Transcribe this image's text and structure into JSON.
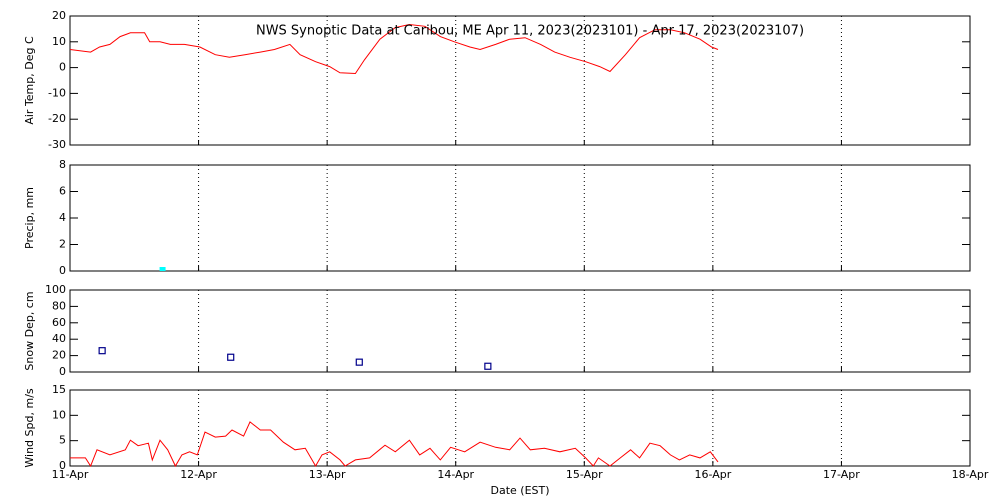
{
  "chart_data": [
    {
      "type": "line",
      "title": "NWS Synoptic Data at Caribou, ME   Apr 11, 2023(2023101) - Apr 17, 2023(2023107)",
      "y_label": "Air Temp, Deg C",
      "color": "#ff0000",
      "grid": true,
      "x": [
        0,
        0.16,
        0.23,
        0.31,
        0.39,
        0.47,
        0.58,
        0.62,
        0.7,
        0.78,
        0.89,
        1.01,
        1.13,
        1.24,
        1.36,
        1.48,
        1.59,
        1.71,
        1.79,
        1.91,
        2.02,
        2.1,
        2.22,
        2.29,
        2.41,
        2.53,
        2.64,
        2.76,
        2.88,
        2.99,
        3.11,
        3.19,
        3.31,
        3.42,
        3.54,
        3.66,
        3.77,
        3.89,
        4.01,
        4.12,
        4.2,
        4.32,
        4.43,
        4.55,
        4.67,
        4.78,
        4.9,
        4.99,
        5.04
      ],
      "values": [
        7,
        6,
        8,
        9,
        12,
        13.5,
        13.5,
        10,
        10,
        9,
        9,
        8,
        5,
        4,
        5,
        6,
        7,
        9,
        5,
        2.3,
        0.4,
        -2,
        -2.3,
        3,
        11,
        15.5,
        16.7,
        16,
        12,
        10,
        8,
        7,
        9,
        11,
        11.6,
        9,
        6,
        4,
        2.3,
        0.4,
        -1.5,
        5,
        11.6,
        14.7,
        14.7,
        13.5,
        11,
        8,
        7
      ],
      "xlim": [
        0,
        7
      ],
      "xticks": [
        0,
        1,
        2,
        3,
        4,
        5,
        6,
        7
      ],
      "ylim": [
        -30,
        20
      ],
      "yticks": [
        -30,
        -20,
        -10,
        0,
        10,
        20
      ]
    },
    {
      "type": "bar",
      "y_label": "Precip, mm",
      "color": "#00ffff",
      "grid": true,
      "x": [
        0.72
      ],
      "values": [
        0.2
      ],
      "xlim": [
        0,
        7
      ],
      "xticks": [
        0,
        1,
        2,
        3,
        4,
        5,
        6,
        7
      ],
      "ylim": [
        0,
        8
      ],
      "yticks": [
        0,
        2,
        4,
        6,
        8
      ]
    },
    {
      "type": "scatter",
      "y_label": "Snow Dep, cm",
      "color": "#00008b",
      "grid": true,
      "x": [
        0.25,
        1.25,
        2.25,
        3.25
      ],
      "values": [
        26,
        18,
        12,
        7
      ],
      "xlim": [
        0,
        7
      ],
      "xticks": [
        0,
        1,
        2,
        3,
        4,
        5,
        6,
        7
      ],
      "ylim": [
        0,
        100
      ],
      "yticks": [
        0,
        20,
        40,
        60,
        80,
        100
      ]
    },
    {
      "type": "line",
      "y_label": "Wind Spd, m/s",
      "x_label": "Date (EST)",
      "color": "#ff0000",
      "grid": true,
      "x": [
        0,
        0.12,
        0.16,
        0.21,
        0.31,
        0.43,
        0.47,
        0.53,
        0.61,
        0.64,
        0.7,
        0.76,
        0.82,
        0.87,
        0.93,
        0.99,
        1.05,
        1.13,
        1.21,
        1.26,
        1.35,
        1.4,
        1.48,
        1.56,
        1.66,
        1.75,
        1.83,
        1.91,
        1.96,
        2.02,
        2.1,
        2.14,
        2.22,
        2.33,
        2.45,
        2.53,
        2.64,
        2.72,
        2.8,
        2.88,
        2.96,
        3.07,
        3.19,
        3.31,
        3.42,
        3.5,
        3.58,
        3.69,
        3.81,
        3.93,
        4.01,
        4.07,
        4.11,
        4.2,
        4.28,
        4.36,
        4.43,
        4.51,
        4.59,
        4.67,
        4.74,
        4.82,
        4.9,
        4.98,
        5.04
      ],
      "values": [
        1.6,
        1.6,
        0,
        3.2,
        2.2,
        3.2,
        5.1,
        4,
        4.5,
        1.2,
        5.1,
        3.2,
        0,
        2.2,
        2.8,
        2.2,
        6.7,
        5.7,
        5.9,
        7.1,
        5.9,
        8.7,
        7.1,
        7.1,
        4.7,
        3.2,
        3.5,
        0,
        2.2,
        2.8,
        1.2,
        0,
        1.2,
        1.6,
        4.1,
        2.8,
        5.1,
        2.2,
        3.5,
        1.2,
        3.7,
        2.8,
        4.7,
        3.7,
        3.2,
        5.5,
        3.2,
        3.5,
        2.8,
        3.5,
        1.6,
        0,
        1.6,
        0,
        1.6,
        3.2,
        1.6,
        4.5,
        4,
        2.2,
        1.2,
        2.2,
        1.6,
        2.8,
        0.8
      ],
      "xlim": [
        0,
        7
      ],
      "xticks": [
        {
          "value": 0,
          "label": "11-Apr"
        },
        {
          "value": 1,
          "label": "12-Apr"
        },
        {
          "value": 2,
          "label": "13-Apr"
        },
        {
          "value": 3,
          "label": "14-Apr"
        },
        {
          "value": 4,
          "label": "15-Apr"
        },
        {
          "value": 5,
          "label": "16-Apr"
        },
        {
          "value": 6,
          "label": "17-Apr"
        },
        {
          "value": 7,
          "label": "18-Apr"
        }
      ],
      "ylim": [
        0,
        15
      ],
      "yticks": [
        0,
        5,
        10,
        15
      ]
    }
  ]
}
